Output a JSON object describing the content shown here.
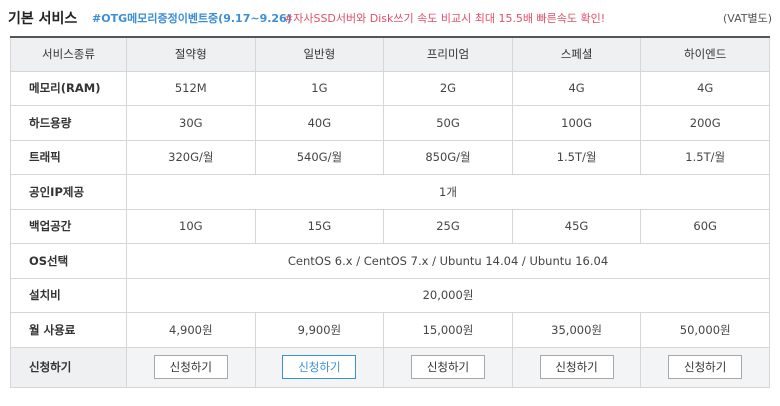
{
  "header": {
    "title": "기본 서비스",
    "event": "#OTG메모리증정이벤트중(9.17~9.26)",
    "promo": "#자사SSD서버와 Disk쓰기 속도 비교시 최대 15.5배 빠른속도 확인!",
    "vat": "(VAT별도)"
  },
  "table": {
    "corner": "서비스종류",
    "plans": [
      "절약형",
      "일반형",
      "프리미엄",
      "스페셜",
      "하이엔드"
    ],
    "rows": {
      "memory": {
        "label": "메모리(RAM)",
        "values": [
          "512M",
          "1G",
          "2G",
          "4G",
          "4G"
        ]
      },
      "disk": {
        "label": "하드용량",
        "values": [
          "30G",
          "40G",
          "50G",
          "100G",
          "200G"
        ]
      },
      "traffic": {
        "label": "트래픽",
        "values": [
          "320G/월",
          "540G/월",
          "850G/월",
          "1.5T/월",
          "1.5T/월"
        ]
      },
      "ip": {
        "label": "공인IP제공",
        "value": "1개"
      },
      "backup": {
        "label": "백업공간",
        "values": [
          "10G",
          "15G",
          "25G",
          "45G",
          "60G"
        ]
      },
      "os": {
        "label": "OS선택",
        "value": "CentOS 6.x / CentOS 7.x / Ubuntu 14.04 / Ubuntu 16.04"
      },
      "setup": {
        "label": "설치비",
        "value": "20,000원"
      },
      "monthly": {
        "label": "월 사용료",
        "values": [
          "4,900원",
          "9,900원",
          "15,000원",
          "35,000원",
          "50,000원"
        ]
      }
    },
    "apply": {
      "label": "신청하기",
      "button_label": "신청하기"
    }
  },
  "colors": {
    "event": "#3b8fd6",
    "promo": "#e0506a",
    "header_bg": "#eef0f2",
    "active_button": "#3b8fd6"
  }
}
